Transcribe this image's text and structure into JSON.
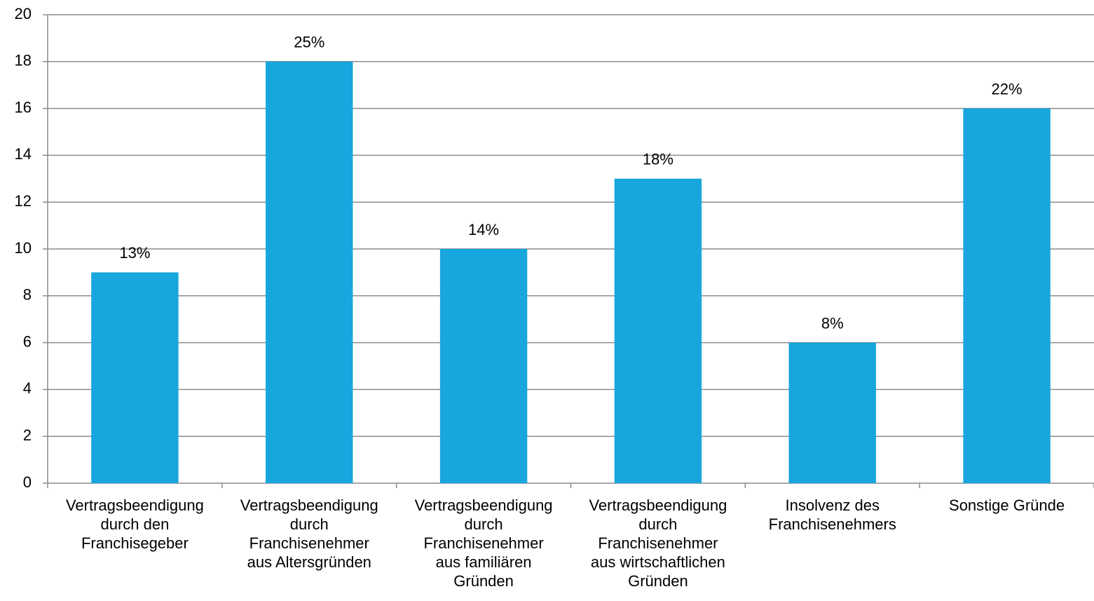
{
  "chart_data": {
    "type": "bar",
    "categories": [
      "Vertragsbeendigung\ndurch den\nFranchisegeber",
      "Vertragsbeendigung\ndurch\nFranchisenehmer\naus Altersgründen",
      "Vertragsbeendigung\ndurch\nFranchisenehmer\naus familiären\nGründen",
      "Vertragsbeendigung\ndurch\nFranchisenehmer\naus wirtschaftlichen\nGründen",
      "Insolvenz des\nFranchisenehmers",
      "Sonstige Gründe"
    ],
    "values": [
      9,
      18,
      10,
      13,
      6,
      16
    ],
    "annotations": [
      "13%",
      "25%",
      "14%",
      "18%",
      "8%",
      "22%"
    ],
    "color": "#17a6dd",
    "ylim": [
      0,
      20
    ],
    "yticks": [
      0,
      2,
      4,
      6,
      8,
      10,
      12,
      14,
      16,
      18,
      20
    ],
    "grid": true
  }
}
